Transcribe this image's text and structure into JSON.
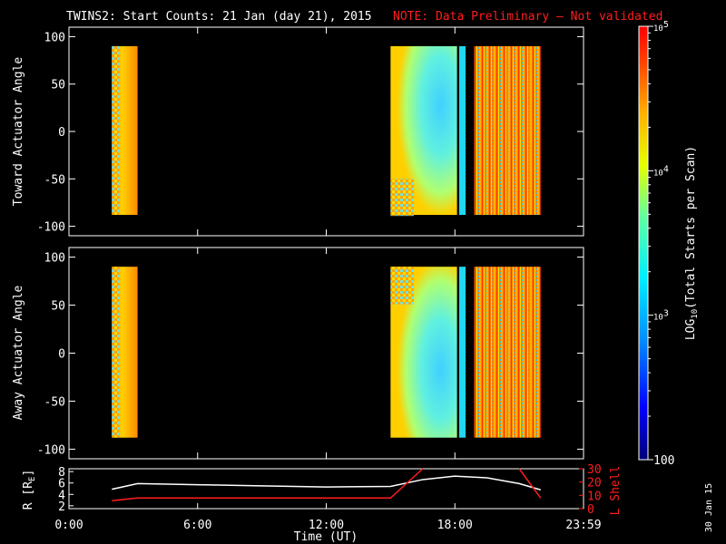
{
  "title": "TWINS2: Start Counts: 21 Jan (day  21), 2015",
  "note": "NOTE: Data Preliminary – Not validated",
  "date_stamp": "30 Jan 15",
  "colors": {
    "background": "#000000",
    "axes": "#ffffff",
    "note": "#ff1e1e",
    "lshell": "#ff1e1e",
    "radius": "#ffffff"
  },
  "chart_data": [
    {
      "type": "heatmap",
      "panel": "toward",
      "ylabel": "Toward Actuator Angle",
      "ylim": [
        -110,
        110
      ],
      "yticks": [
        100,
        50,
        0,
        -50,
        -100
      ],
      "xlim": [
        0,
        24
      ],
      "blocks": [
        {
          "start": 2.0,
          "end": 3.2
        },
        {
          "start": 15.0,
          "end": 18.1
        },
        {
          "start": 18.2,
          "end": 18.5
        },
        {
          "start": 18.9,
          "end": 22.0
        }
      ]
    },
    {
      "type": "heatmap",
      "panel": "away",
      "ylabel": "Away Actuator Angle",
      "ylim": [
        -110,
        110
      ],
      "yticks": [
        100,
        50,
        0,
        -50,
        -100
      ],
      "xlim": [
        0,
        24
      ],
      "blocks": [
        {
          "start": 2.0,
          "end": 3.2
        },
        {
          "start": 15.0,
          "end": 18.1
        },
        {
          "start": 18.2,
          "end": 18.5
        },
        {
          "start": 18.9,
          "end": 22.0
        }
      ]
    },
    {
      "type": "line",
      "panel": "orbit",
      "xlabel": "Time (UT)",
      "xticks": [
        "0:00",
        "6:00",
        "12:00",
        "18:00",
        "23:59"
      ],
      "ylabel_left": "R [R",
      "ylabel_left_sub": "E",
      "ylabel_left_end": "]",
      "ylim_left": [
        1.5,
        8.5
      ],
      "yticks_left": [
        2,
        4,
        6,
        8
      ],
      "ylabel_right": "L Shell",
      "ylim_right": [
        0,
        30
      ],
      "yticks_right": [
        0,
        10,
        20,
        30
      ],
      "series": [
        {
          "axis": "left",
          "x": [
            2.0,
            3.2,
            6,
            9,
            12,
            15.0,
            16.5,
            18.0,
            19.5,
            21.0,
            22.0
          ],
          "y": [
            4.9,
            5.9,
            5.7,
            5.5,
            5.3,
            5.4,
            6.6,
            7.2,
            6.9,
            5.9,
            4.8
          ]
        },
        {
          "axis": "right",
          "x": [
            2.0,
            3.2,
            6,
            9,
            12,
            15.0,
            16.5
          ],
          "y": [
            6,
            8,
            8,
            8,
            8,
            8,
            31
          ]
        },
        {
          "axis": "right",
          "x": [
            21.0,
            22.0
          ],
          "y": [
            31,
            8
          ]
        }
      ]
    }
  ],
  "colorbar": {
    "label_prefix": "LOG",
    "label_sub": "10",
    "label_suffix": "(Total Starts per Scan)",
    "scale": "log",
    "range": [
      100,
      100000
    ],
    "tick_labels": [
      {
        "base": "10",
        "exp": "5",
        "value": 100000
      },
      {
        "base": "10",
        "exp": "4",
        "value": 10000
      },
      {
        "base": "10",
        "exp": "3",
        "value": 1000
      },
      {
        "plain": "100",
        "value": 100
      }
    ]
  }
}
